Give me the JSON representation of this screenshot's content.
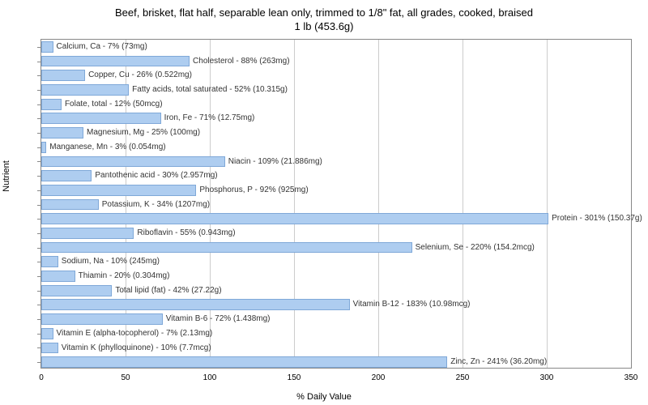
{
  "chart": {
    "type": "bar-horizontal",
    "title_line1": "Beef, brisket, flat half, separable lean only, trimmed to 1/8\" fat, all grades, cooked, braised",
    "title_line2": "1 lb (453.6g)",
    "title_fontsize": 13,
    "x_axis_label": "% Daily Value",
    "y_axis_label": "Nutrient",
    "axis_label_fontsize": 11,
    "tick_fontsize": 10,
    "bar_label_fontsize": 10,
    "xlim_min": 0,
    "xlim_max": 350,
    "xtick_step": 50,
    "xticks": [
      0,
      50,
      100,
      150,
      200,
      250,
      300,
      350
    ],
    "bar_color": "#aecdf0",
    "bar_border_color": "#7fa8d8",
    "grid_color": "#cccccc",
    "border_color": "#888888",
    "background_color": "#ffffff",
    "text_color": "#333333",
    "nutrients": [
      {
        "name": "Calcium, Ca",
        "percent": 7,
        "amount": "73mg",
        "label": "Calcium, Ca - 7% (73mg)"
      },
      {
        "name": "Cholesterol",
        "percent": 88,
        "amount": "263mg",
        "label": "Cholesterol - 88% (263mg)"
      },
      {
        "name": "Copper, Cu",
        "percent": 26,
        "amount": "0.522mg",
        "label": "Copper, Cu - 26% (0.522mg)"
      },
      {
        "name": "Fatty acids, total saturated",
        "percent": 52,
        "amount": "10.315g",
        "label": "Fatty acids, total saturated - 52% (10.315g)"
      },
      {
        "name": "Folate, total",
        "percent": 12,
        "amount": "50mcg",
        "label": "Folate, total - 12% (50mcg)"
      },
      {
        "name": "Iron, Fe",
        "percent": 71,
        "amount": "12.75mg",
        "label": "Iron, Fe - 71% (12.75mg)"
      },
      {
        "name": "Magnesium, Mg",
        "percent": 25,
        "amount": "100mg",
        "label": "Magnesium, Mg - 25% (100mg)"
      },
      {
        "name": "Manganese, Mn",
        "percent": 3,
        "amount": "0.054mg",
        "label": "Manganese, Mn - 3% (0.054mg)"
      },
      {
        "name": "Niacin",
        "percent": 109,
        "amount": "21.886mg",
        "label": "Niacin - 109% (21.886mg)"
      },
      {
        "name": "Pantothenic acid",
        "percent": 30,
        "amount": "2.957mg",
        "label": "Pantothenic acid - 30% (2.957mg)"
      },
      {
        "name": "Phosphorus, P",
        "percent": 92,
        "amount": "925mg",
        "label": "Phosphorus, P - 92% (925mg)"
      },
      {
        "name": "Potassium, K",
        "percent": 34,
        "amount": "1207mg",
        "label": "Potassium, K - 34% (1207mg)"
      },
      {
        "name": "Protein",
        "percent": 301,
        "amount": "150.37g",
        "label": "Protein - 301% (150.37g)"
      },
      {
        "name": "Riboflavin",
        "percent": 55,
        "amount": "0.943mg",
        "label": "Riboflavin - 55% (0.943mg)"
      },
      {
        "name": "Selenium, Se",
        "percent": 220,
        "amount": "154.2mcg",
        "label": "Selenium, Se - 220% (154.2mcg)"
      },
      {
        "name": "Sodium, Na",
        "percent": 10,
        "amount": "245mg",
        "label": "Sodium, Na - 10% (245mg)"
      },
      {
        "name": "Thiamin",
        "percent": 20,
        "amount": "0.304mg",
        "label": "Thiamin - 20% (0.304mg)"
      },
      {
        "name": "Total lipid (fat)",
        "percent": 42,
        "amount": "27.22g",
        "label": "Total lipid (fat) - 42% (27.22g)"
      },
      {
        "name": "Vitamin B-12",
        "percent": 183,
        "amount": "10.98mcg",
        "label": "Vitamin B-12 - 183% (10.98mcg)"
      },
      {
        "name": "Vitamin B-6",
        "percent": 72,
        "amount": "1.438mg",
        "label": "Vitamin B-6 - 72% (1.438mg)"
      },
      {
        "name": "Vitamin E (alpha-tocopherol)",
        "percent": 7,
        "amount": "2.13mg",
        "label": "Vitamin E (alpha-tocopherol) - 7% (2.13mg)"
      },
      {
        "name": "Vitamin K (phylloquinone)",
        "percent": 10,
        "amount": "7.7mcg",
        "label": "Vitamin K (phylloquinone) - 10% (7.7mcg)"
      },
      {
        "name": "Zinc, Zn",
        "percent": 241,
        "amount": "36.20mg",
        "label": "Zinc, Zn - 241% (36.20mg)"
      }
    ]
  }
}
